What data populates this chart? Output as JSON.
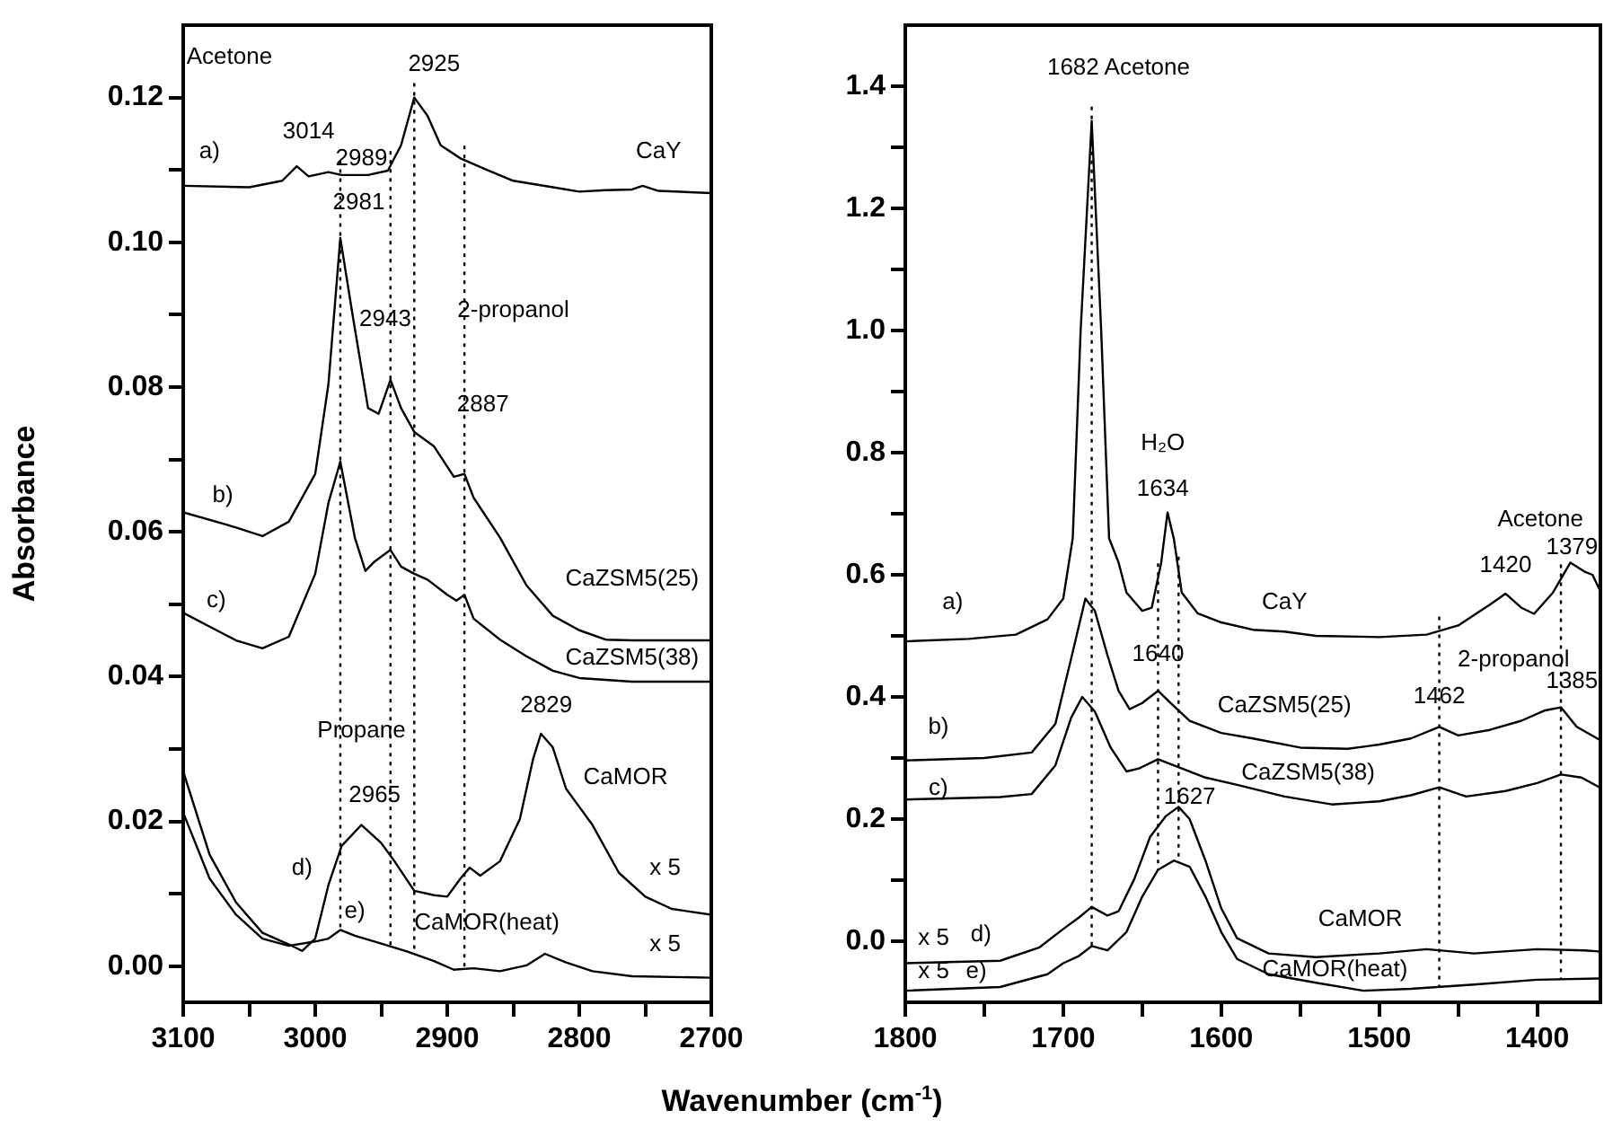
{
  "chart_data": [
    {
      "type": "line",
      "ylabel": "Absorbance",
      "xlim": [
        3100,
        2700
      ],
      "ylim": [
        -0.005,
        0.13
      ],
      "grid": false,
      "legend": false,
      "line_style": "solid",
      "xticks": [
        3100,
        {
          "value": 3050,
          "label": null
        },
        3000,
        {
          "value": 2950,
          "label": null
        },
        2900,
        {
          "value": 2850,
          "label": null
        },
        2800,
        {
          "value": 2750,
          "label": null
        },
        2700
      ],
      "yticks": [
        {
          "value": 0,
          "label": "0.00"
        },
        {
          "value": 0.01,
          "label": null
        },
        {
          "value": 0.02,
          "label": "0.02"
        },
        {
          "value": 0.03,
          "label": null
        },
        {
          "value": 0.04,
          "label": "0.04"
        },
        {
          "value": 0.05,
          "label": null
        },
        {
          "value": 0.06,
          "label": "0.06"
        },
        {
          "value": 0.07,
          "label": null
        },
        {
          "value": 0.08,
          "label": "0.08"
        },
        {
          "value": 0.09,
          "label": null
        },
        {
          "value": 0.1,
          "label": "0.10"
        },
        {
          "value": 0.11,
          "label": null
        },
        {
          "value": 0.12,
          "label": "0.12"
        }
      ],
      "series": [
        {
          "color": "#000000",
          "x": [
            3100,
            3050,
            3025,
            3014,
            3005,
            2990,
            2980,
            2960,
            2945,
            2935,
            2925,
            2915,
            2905,
            2890,
            2870,
            2850,
            2820,
            2800,
            2780,
            2760,
            2752,
            2740,
            2700
          ],
          "values": [
            0.1078,
            0.1076,
            0.1085,
            0.1105,
            0.1091,
            0.1097,
            0.1093,
            0.1093,
            0.1099,
            0.1134,
            0.12,
            0.1175,
            0.1134,
            0.1116,
            0.11,
            0.1085,
            0.1076,
            0.107,
            0.1072,
            0.1073,
            0.1078,
            0.1071,
            0.1068
          ]
        },
        {
          "color": "#000000",
          "x": [
            3100,
            3060,
            3040,
            3020,
            3000,
            2990,
            2981,
            2972,
            2960,
            2952,
            2943,
            2935,
            2925,
            2910,
            2895,
            2887,
            2880,
            2860,
            2840,
            2820,
            2800,
            2780,
            2760,
            2700
          ],
          "values": [
            0.0627,
            0.0606,
            0.0594,
            0.0614,
            0.068,
            0.0804,
            0.1006,
            0.0903,
            0.0771,
            0.0763,
            0.081,
            0.0771,
            0.0738,
            0.0718,
            0.0676,
            0.068,
            0.0647,
            0.0592,
            0.0526,
            0.0484,
            0.0464,
            0.0451,
            0.045,
            0.045
          ]
        },
        {
          "color": "#000000",
          "x": [
            3100,
            3060,
            3040,
            3020,
            3000,
            2990,
            2981,
            2970,
            2962,
            2955,
            2943,
            2935,
            2925,
            2915,
            2900,
            2893,
            2887,
            2880,
            2860,
            2840,
            2820,
            2800,
            2760,
            2700
          ],
          "values": [
            0.0488,
            0.045,
            0.0439,
            0.0455,
            0.0542,
            0.064,
            0.0697,
            0.0592,
            0.0546,
            0.0559,
            0.0575,
            0.0552,
            0.0542,
            0.0534,
            0.0513,
            0.0505,
            0.0513,
            0.048,
            0.0451,
            0.0428,
            0.0408,
            0.0398,
            0.0393,
            0.0393
          ]
        },
        {
          "color": "#000000",
          "x": [
            3100,
            3080,
            3060,
            3040,
            3020,
            3010,
            3000,
            2990,
            2980,
            2965,
            2950,
            2940,
            2925,
            2910,
            2900,
            2890,
            2883,
            2875,
            2860,
            2845,
            2835,
            2829,
            2820,
            2810,
            2800,
            2790,
            2770,
            2750,
            2730,
            2700
          ],
          "values": [
            0.0269,
            0.0154,
            0.0088,
            0.0046,
            0.003,
            0.0021,
            0.0038,
            0.0112,
            0.0166,
            0.0195,
            0.017,
            0.0145,
            0.0104,
            0.0098,
            0.0096,
            0.0121,
            0.0136,
            0.0125,
            0.0145,
            0.0203,
            0.0286,
            0.0321,
            0.0302,
            0.0245,
            0.022,
            0.0195,
            0.0129,
            0.0096,
            0.0079,
            0.0071
          ]
        },
        {
          "color": "#000000",
          "x": [
            3100,
            3080,
            3060,
            3040,
            3020,
            3000,
            2990,
            2981,
            2970,
            2950,
            2930,
            2910,
            2895,
            2880,
            2860,
            2840,
            2826,
            2810,
            2790,
            2760,
            2700
          ],
          "values": [
            0.0212,
            0.0121,
            0.0071,
            0.0038,
            0.0028,
            0.0034,
            0.0038,
            0.005,
            0.0042,
            0.0031,
            0.002,
            0.0007,
            -0.0005,
            -0.0003,
            -0.0007,
            0.0001,
            0.0017,
            0.0005,
            -0.0007,
            -0.0014,
            -0.0016
          ]
        }
      ],
      "ref_lines": [
        {
          "axis": "x",
          "value": 2981,
          "line_style": "dotted"
        },
        {
          "axis": "x",
          "value": 2943,
          "line_style": "dotted"
        },
        {
          "axis": "x",
          "value": 2925,
          "line_style": "dotted"
        },
        {
          "axis": "x",
          "value": 2887,
          "line_style": "dotted"
        }
      ],
      "annotations": [
        "Acetone",
        "2925",
        "3014",
        "a)",
        "2989",
        "2981",
        "CaY",
        "2-propanol",
        "2943",
        "2887",
        "b)",
        "c)",
        "CaZSM5(25)",
        "CaZSM5(38)",
        "Propane",
        "2829",
        "2965",
        "CaMOR",
        "d)",
        "x 5",
        "e)",
        "CaMOR(heat)",
        "x 5"
      ]
    },
    {
      "type": "line",
      "xlabel": "Wavenumber (cm$^{-1}$)",
      "xlim": [
        1800,
        1360
      ],
      "ylim": [
        -0.1,
        1.5
      ],
      "grid": false,
      "legend": false,
      "line_style": "solid",
      "xticks": [
        1800,
        {
          "value": 1750,
          "label": null
        },
        1700,
        {
          "value": 1650,
          "label": null
        },
        1600,
        {
          "value": 1550,
          "label": null
        },
        1500,
        {
          "value": 1450,
          "label": null
        },
        1400
      ],
      "yticks": [
        {
          "value": 0,
          "label": "0.0"
        },
        {
          "value": 0.1,
          "label": null
        },
        {
          "value": 0.2,
          "label": "0.2"
        },
        {
          "value": 0.3,
          "label": null
        },
        {
          "value": 0.4,
          "label": "0.4"
        },
        {
          "value": 0.5,
          "label": null
        },
        {
          "value": 0.6,
          "label": "0.6"
        },
        {
          "value": 0.7,
          "label": null
        },
        {
          "value": 0.8,
          "label": "0.8"
        },
        {
          "value": 0.9,
          "label": null
        },
        {
          "value": 1,
          "label": "1.0"
        },
        {
          "value": 1.1,
          "label": null
        },
        {
          "value": 1.2,
          "label": "1.2"
        },
        {
          "value": 1.3,
          "label": null
        },
        {
          "value": 1.4,
          "label": "1.4"
        }
      ],
      "series": [
        {
          "color": "#000000",
          "x": [
            1800,
            1760,
            1730,
            1710,
            1700,
            1694,
            1689,
            1682,
            1676,
            1671,
            1665,
            1660,
            1650,
            1644,
            1638,
            1634,
            1630,
            1625,
            1615,
            1600,
            1580,
            1560,
            1540,
            1500,
            1470,
            1450,
            1430,
            1420,
            1410,
            1402,
            1390,
            1379,
            1370,
            1365,
            1360
          ],
          "values": [
            0.491,
            0.495,
            0.502,
            0.527,
            0.561,
            0.66,
            1.0,
            1.343,
            1.0,
            0.66,
            0.62,
            0.571,
            0.541,
            0.546,
            0.62,
            0.702,
            0.659,
            0.571,
            0.537,
            0.522,
            0.51,
            0.507,
            0.5,
            0.498,
            0.502,
            0.517,
            0.551,
            0.569,
            0.546,
            0.536,
            0.571,
            0.62,
            0.605,
            0.6,
            0.573
          ]
        },
        {
          "color": "#000000",
          "x": [
            1800,
            1750,
            1720,
            1705,
            1695,
            1686,
            1680,
            1672,
            1665,
            1658,
            1650,
            1640,
            1632,
            1620,
            1600,
            1580,
            1550,
            1520,
            1500,
            1480,
            1462,
            1450,
            1430,
            1410,
            1395,
            1385,
            1375,
            1360
          ],
          "values": [
            0.296,
            0.3,
            0.309,
            0.356,
            0.463,
            0.561,
            0.541,
            0.468,
            0.41,
            0.38,
            0.39,
            0.41,
            0.39,
            0.361,
            0.341,
            0.332,
            0.317,
            0.315,
            0.322,
            0.332,
            0.351,
            0.337,
            0.346,
            0.361,
            0.378,
            0.383,
            0.351,
            0.329
          ]
        },
        {
          "color": "#000000",
          "x": [
            1800,
            1740,
            1720,
            1705,
            1695,
            1688,
            1680,
            1670,
            1660,
            1652,
            1640,
            1625,
            1610,
            1590,
            1560,
            1530,
            1500,
            1480,
            1462,
            1445,
            1420,
            1400,
            1385,
            1372,
            1360
          ],
          "values": [
            0.232,
            0.236,
            0.241,
            0.288,
            0.366,
            0.4,
            0.376,
            0.317,
            0.278,
            0.283,
            0.298,
            0.283,
            0.268,
            0.256,
            0.237,
            0.224,
            0.229,
            0.239,
            0.252,
            0.237,
            0.246,
            0.259,
            0.273,
            0.268,
            0.251
          ]
        },
        {
          "color": "#000000",
          "x": [
            1800,
            1740,
            1715,
            1700,
            1690,
            1682,
            1672,
            1665,
            1655,
            1645,
            1635,
            1627,
            1620,
            1610,
            1600,
            1590,
            1570,
            1540,
            1500,
            1470,
            1440,
            1400,
            1370,
            1360
          ],
          "values": [
            -0.036,
            -0.032,
            -0.01,
            0.02,
            0.039,
            0.056,
            0.042,
            0.049,
            0.102,
            0.171,
            0.205,
            0.22,
            0.2,
            0.132,
            0.054,
            0.005,
            -0.02,
            -0.026,
            -0.02,
            -0.013,
            -0.02,
            -0.013,
            -0.015,
            -0.017
          ]
        },
        {
          "color": "#000000",
          "x": [
            1800,
            1740,
            1710,
            1700,
            1690,
            1682,
            1672,
            1660,
            1650,
            1640,
            1630,
            1620,
            1610,
            1600,
            1590,
            1570,
            1540,
            1510,
            1480,
            1440,
            1400,
            1360
          ],
          "values": [
            -0.081,
            -0.075,
            -0.054,
            -0.036,
            -0.024,
            -0.008,
            -0.015,
            0.015,
            0.073,
            0.117,
            0.132,
            0.122,
            0.073,
            0.015,
            -0.029,
            -0.054,
            -0.068,
            -0.081,
            -0.078,
            -0.071,
            -0.063,
            -0.061
          ]
        }
      ],
      "ref_lines": [
        {
          "axis": "x",
          "value": 1682,
          "line_style": "dotted"
        },
        {
          "axis": "x",
          "value": 1640,
          "line_style": "dotted"
        },
        {
          "axis": "x",
          "value": 1627,
          "line_style": "dotted"
        },
        {
          "axis": "x",
          "value": 1462,
          "line_style": "dotted"
        },
        {
          "axis": "x",
          "value": 1385,
          "line_style": "dotted"
        }
      ],
      "annotations": [
        "1682 Acetone",
        "H₂O",
        "1634",
        "Acetone",
        "1420",
        "1379",
        "a)",
        "CaY",
        "1640",
        "2-propanol",
        "1462",
        "1385",
        "b)",
        "CaZSM5(25)",
        "c)",
        "CaZSM5(38)",
        "1627",
        "x 5",
        "d)",
        "CaMOR",
        "x 5",
        "e)",
        "CaMOR(heat)"
      ]
    }
  ]
}
